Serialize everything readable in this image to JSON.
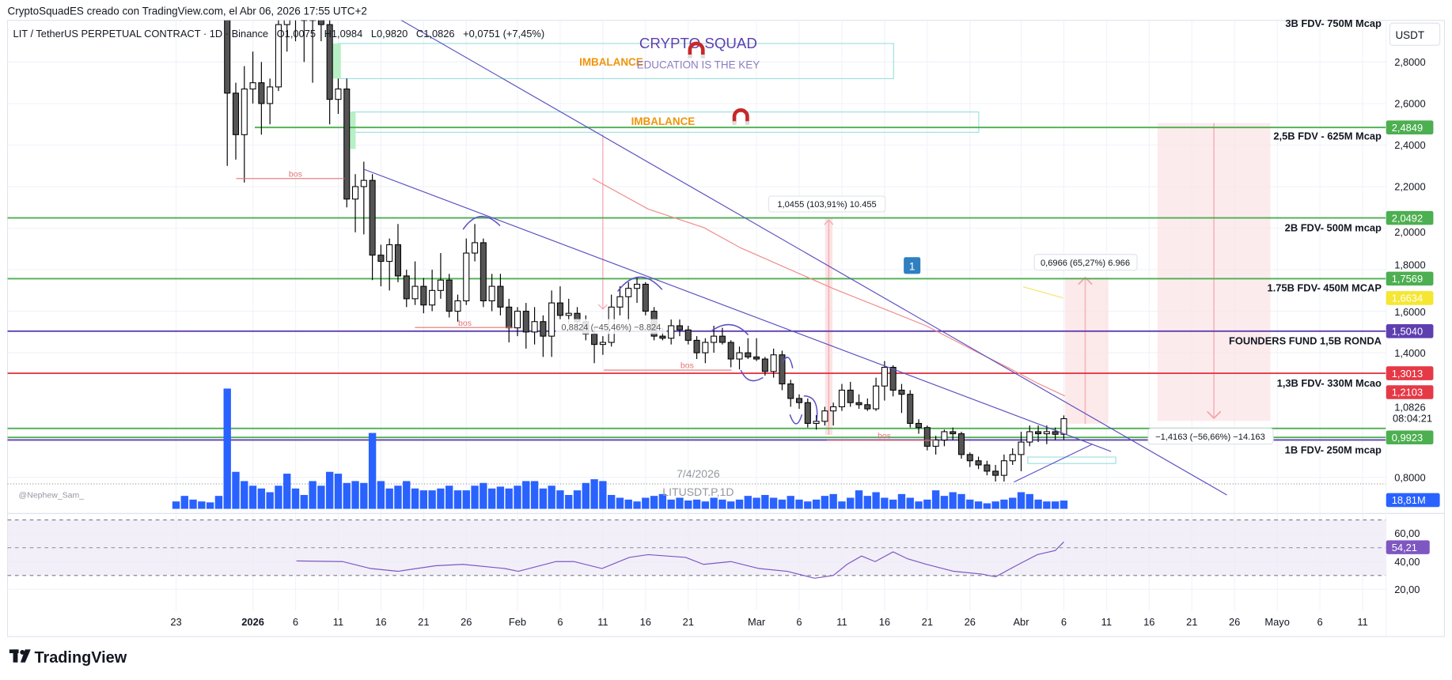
{
  "header": {
    "attribution": "CryptoSquadES creado con TradingView.com, el Abr 06, 2026 17:55 UTC+2",
    "symbol": "LIT / TetherUS PERPETUAL CONTRACT · 1D · Binance",
    "open": "O1,0075",
    "high": "H1,0984",
    "low": "L0,9820",
    "close": "C1,0826",
    "change": "+0,0751 (+7,45%)"
  },
  "price_axis": {
    "currency": "USDT",
    "ticks": [
      {
        "label": "2,8000",
        "price": 2.8
      },
      {
        "label": "2,6000",
        "price": 2.6
      },
      {
        "label": "2,4000",
        "price": 2.4
      },
      {
        "label": "2,2000",
        "price": 2.2
      },
      {
        "label": "2,0000",
        "price": 2.0
      },
      {
        "label": "1,8000",
        "price": 1.8
      },
      {
        "label": "1,6000",
        "price": 1.6
      },
      {
        "label": "1,4000",
        "price": 1.4
      },
      {
        "label": "0,8000",
        "price": 0.8
      }
    ],
    "current_price": "1,0826",
    "countdown": "08:04:21",
    "volume_label": "18,81M",
    "volume_color": "#2962ff"
  },
  "price_labels": [
    {
      "text": "2,4849",
      "price": 2.4849,
      "color": "#4caf50"
    },
    {
      "text": "2,0492",
      "price": 2.0492,
      "color": "#4caf50"
    },
    {
      "text": "1,7569",
      "price": 1.7569,
      "color": "#4caf50"
    },
    {
      "text": "1,6634",
      "price": 1.6634,
      "color": "#f5e632"
    },
    {
      "text": "1,5040",
      "price": 1.504,
      "color": "#5e3fb0"
    },
    {
      "text": "1,3013",
      "price": 1.3013,
      "color": "#e53946"
    },
    {
      "text": "1,2103",
      "price": 1.2103,
      "color": "#e53946"
    },
    {
      "text": "0,9923",
      "price": 0.9923,
      "color": "#4caf50"
    }
  ],
  "level_notes": [
    "3B FDV-  750M Mcap",
    "2,5B FDV - 625M Mcap",
    "2B FDV- 500M mcap",
    "1.75B FDV- 450M MCAP",
    "FOUNDERS FUND 1,5B RONDA",
    "1,3B FDV- 330M Mcao",
    "1B FDV- 250M mcap"
  ],
  "annotations": {
    "imbalance_1": "IMBALANCE",
    "imbalance_2": "IMBALANCE",
    "brand_title": "CRYPTO SQUAD",
    "brand_tagline": "EDUCATION IS THE KEY",
    "bos": [
      "bos",
      "bos",
      "bos",
      "bos"
    ],
    "measure_1": "0,8824 (−45,46%) −8.824",
    "measure_2": "1,0455 (103,91%) 10.455",
    "measure_3": "0,6966 (65,27%) 6.966",
    "measure_4": "−1,4163 (−56,66%) −14.163",
    "badge": "1",
    "watermark_date": "7/4/2026",
    "watermark_symbol": "LITUSDT.P,1D",
    "author_tag": "@Nephew_Sam_"
  },
  "rsi": {
    "ticks": [
      {
        "label": "60,00",
        "value": 60
      },
      {
        "label": "40,00",
        "value": 40
      },
      {
        "label": "20,00",
        "value": 20
      }
    ],
    "current": "54,21",
    "color": "#7e57c2"
  },
  "time_axis": {
    "labels": [
      {
        "text": "23",
        "day": 0
      },
      {
        "text": "2026",
        "day": 9,
        "bold": true
      },
      {
        "text": "6",
        "day": 14
      },
      {
        "text": "11",
        "day": 19
      },
      {
        "text": "16",
        "day": 24
      },
      {
        "text": "21",
        "day": 29
      },
      {
        "text": "26",
        "day": 34
      },
      {
        "text": "Feb",
        "day": 40
      },
      {
        "text": "6",
        "day": 45
      },
      {
        "text": "11",
        "day": 50
      },
      {
        "text": "16",
        "day": 55
      },
      {
        "text": "21",
        "day": 60
      },
      {
        "text": "Mar",
        "day": 68
      },
      {
        "text": "6",
        "day": 73
      },
      {
        "text": "11",
        "day": 78
      },
      {
        "text": "16",
        "day": 83
      },
      {
        "text": "21",
        "day": 88
      },
      {
        "text": "26",
        "day": 93
      },
      {
        "text": "Abr",
        "day": 99
      },
      {
        "text": "6",
        "day": 104
      },
      {
        "text": "11",
        "day": 109
      },
      {
        "text": "16",
        "day": 114
      },
      {
        "text": "21",
        "day": 119
      },
      {
        "text": "26",
        "day": 124
      },
      {
        "text": "Mayo",
        "day": 129
      },
      {
        "text": "6",
        "day": 134
      },
      {
        "text": "11",
        "day": 139
      }
    ]
  },
  "footer": {
    "logo_text": "TradingView"
  },
  "chart_data": {
    "type": "candlestick",
    "title": "LIT / TetherUS PERPETUAL CONTRACT · 1D · Binance",
    "x_unit": "days since Dec 23 2025",
    "ylim": [
      0.72,
      3.0
    ],
    "candles_start_day": 6,
    "ohlc": [
      [
        3.05,
        3.12,
        2.3,
        2.65
      ],
      [
        2.65,
        2.7,
        2.33,
        2.45
      ],
      [
        2.45,
        2.78,
        2.22,
        2.67
      ],
      [
        2.67,
        2.85,
        2.6,
        2.7
      ],
      [
        2.7,
        2.8,
        2.45,
        2.6
      ],
      [
        2.6,
        2.72,
        2.5,
        2.68
      ],
      [
        2.68,
        3.1,
        2.66,
        2.98
      ],
      [
        2.98,
        3.2,
        2.85,
        3.05
      ],
      [
        3.05,
        3.3,
        2.9,
        3.1
      ],
      [
        3.1,
        3.3,
        2.8,
        3.0
      ],
      [
        3.0,
        3.2,
        2.7,
        3.05
      ],
      [
        3.05,
        3.15,
        2.9,
        2.98
      ],
      [
        2.98,
        3.02,
        2.5,
        2.62
      ],
      [
        2.62,
        2.72,
        2.55,
        2.67
      ],
      [
        2.67,
        2.72,
        2.1,
        2.14
      ],
      [
        2.14,
        2.26,
        1.98,
        2.2
      ],
      [
        2.2,
        2.32,
        1.97,
        2.23
      ],
      [
        2.23,
        2.26,
        1.75,
        1.87
      ],
      [
        1.87,
        1.92,
        1.72,
        1.84
      ],
      [
        1.84,
        1.95,
        1.7,
        1.92
      ],
      [
        1.92,
        2.02,
        1.74,
        1.77
      ],
      [
        1.77,
        1.8,
        1.62,
        1.66
      ],
      [
        1.66,
        1.84,
        1.63,
        1.72
      ],
      [
        1.72,
        1.76,
        1.59,
        1.63
      ],
      [
        1.63,
        1.8,
        1.6,
        1.7
      ],
      [
        1.7,
        1.88,
        1.66,
        1.75
      ],
      [
        1.75,
        1.78,
        1.57,
        1.6
      ],
      [
        1.6,
        1.68,
        1.55,
        1.65
      ],
      [
        1.65,
        1.95,
        1.63,
        1.88
      ],
      [
        1.88,
        2.02,
        1.84,
        1.93
      ],
      [
        1.93,
        1.95,
        1.62,
        1.65
      ],
      [
        1.65,
        1.78,
        1.6,
        1.72
      ],
      [
        1.72,
        1.78,
        1.58,
        1.62
      ],
      [
        1.62,
        1.66,
        1.45,
        1.52
      ],
      [
        1.52,
        1.62,
        1.48,
        1.6
      ],
      [
        1.6,
        1.64,
        1.42,
        1.5
      ],
      [
        1.5,
        1.62,
        1.44,
        1.55
      ],
      [
        1.55,
        1.58,
        1.38,
        1.48
      ],
      [
        1.48,
        1.7,
        1.38,
        1.64
      ],
      [
        1.64,
        1.72,
        1.56,
        1.58
      ],
      [
        1.58,
        1.66,
        1.54,
        1.59
      ],
      [
        1.59,
        1.62,
        1.5,
        1.55
      ],
      [
        1.55,
        1.58,
        1.46,
        1.49
      ],
      [
        1.49,
        1.52,
        1.35,
        1.44
      ],
      [
        1.44,
        1.48,
        1.39,
        1.45
      ],
      [
        1.45,
        1.68,
        1.43,
        1.62
      ],
      [
        1.62,
        1.72,
        1.58,
        1.67
      ],
      [
        1.67,
        1.74,
        1.55,
        1.71
      ],
      [
        1.71,
        1.76,
        1.64,
        1.73
      ],
      [
        1.73,
        1.74,
        1.58,
        1.6
      ],
      [
        1.6,
        1.62,
        1.46,
        1.48
      ],
      [
        1.48,
        1.52,
        1.46,
        1.47
      ],
      [
        1.47,
        1.56,
        1.44,
        1.53
      ],
      [
        1.53,
        1.56,
        1.48,
        1.51
      ],
      [
        1.51,
        1.53,
        1.44,
        1.46
      ],
      [
        1.46,
        1.48,
        1.37,
        1.4
      ],
      [
        1.4,
        1.47,
        1.35,
        1.45
      ],
      [
        1.45,
        1.53,
        1.4,
        1.48
      ],
      [
        1.48,
        1.52,
        1.44,
        1.45
      ],
      [
        1.45,
        1.46,
        1.33,
        1.37
      ],
      [
        1.37,
        1.43,
        1.32,
        1.4
      ],
      [
        1.4,
        1.47,
        1.37,
        1.38
      ],
      [
        1.38,
        1.47,
        1.36,
        1.37
      ],
      [
        1.37,
        1.38,
        1.29,
        1.31
      ],
      [
        1.31,
        1.42,
        1.28,
        1.39
      ],
      [
        1.39,
        1.41,
        1.22,
        1.25
      ],
      [
        1.25,
        1.27,
        1.14,
        1.18
      ],
      [
        1.18,
        1.2,
        1.13,
        1.16
      ],
      [
        1.16,
        1.18,
        1.04,
        1.06
      ],
      [
        1.06,
        1.1,
        1.03,
        1.07
      ],
      [
        1.07,
        1.14,
        1.05,
        1.12
      ],
      [
        1.12,
        1.16,
        1.05,
        1.14
      ],
      [
        1.14,
        1.25,
        1.12,
        1.22
      ],
      [
        1.22,
        1.26,
        1.14,
        1.16
      ],
      [
        1.16,
        1.2,
        1.13,
        1.15
      ],
      [
        1.15,
        1.18,
        1.12,
        1.13
      ],
      [
        1.13,
        1.28,
        1.12,
        1.24
      ],
      [
        1.24,
        1.36,
        1.17,
        1.33
      ],
      [
        1.33,
        1.34,
        1.19,
        1.22
      ],
      [
        1.22,
        1.25,
        1.11,
        1.2
      ],
      [
        1.2,
        1.22,
        1.04,
        1.06
      ],
      [
        1.06,
        1.08,
        1.01,
        1.04
      ],
      [
        1.04,
        1.05,
        0.93,
        0.95
      ],
      [
        0.95,
        1.0,
        0.91,
        0.98
      ],
      [
        0.98,
        1.03,
        0.95,
        1.02
      ],
      [
        1.02,
        1.04,
        0.98,
        1.01
      ],
      [
        1.01,
        1.02,
        0.89,
        0.91
      ],
      [
        0.91,
        0.92,
        0.85,
        0.88
      ],
      [
        0.88,
        0.9,
        0.84,
        0.86
      ],
      [
        0.86,
        0.88,
        0.81,
        0.83
      ],
      [
        0.83,
        0.86,
        0.78,
        0.81
      ],
      [
        0.81,
        0.91,
        0.78,
        0.88
      ],
      [
        0.88,
        0.94,
        0.86,
        0.91
      ],
      [
        0.91,
        1.02,
        0.83,
        0.97
      ],
      [
        0.97,
        1.05,
        0.95,
        1.02
      ],
      [
        1.02,
        1.05,
        0.97,
        1.01
      ],
      [
        1.01,
        1.05,
        0.96,
        1.02
      ],
      [
        1.02,
        1.04,
        0.98,
        1.0075
      ],
      [
        1.0075,
        1.0984,
        0.982,
        1.0826
      ]
    ],
    "volume_start_day": 0,
    "volume_millions": [
      16.8,
      29.4,
      21,
      16.8,
      14.7,
      29.4,
      273,
      84,
      63,
      52.5,
      46.2,
      37.8,
      52.5,
      79.8,
      46.2,
      31.5,
      63,
      52.5,
      84,
      79.8,
      58.8,
      63,
      58.8,
      172.2,
      63,
      46.2,
      52.5,
      63,
      46.2,
      42,
      42,
      46.2,
      52.5,
      42,
      42,
      52.5,
      58.8,
      46.2,
      50.4,
      46.2,
      52.5,
      63,
      63,
      46.2,
      52.5,
      42,
      31.5,
      42,
      58.8,
      67.2,
      63,
      31.5,
      25.2,
      21,
      16.8,
      25.2,
      29.4,
      33.6,
      21,
      25.2,
      18.9,
      21,
      16.8,
      25.2,
      21,
      16.8,
      21,
      29.4,
      25.2,
      31.5,
      25.2,
      21,
      29.4,
      21,
      16.8,
      21,
      29.4,
      33.6,
      16.8,
      25.2,
      42,
      29.4,
      37.8,
      25.2,
      21,
      33.6,
      25.2,
      16.8,
      21,
      42,
      29.4,
      37.8,
      33.6,
      21,
      16.8,
      12.6,
      16.8,
      21,
      25.2,
      37.8,
      33.6,
      21,
      16.8,
      16.8,
      18.81
    ],
    "rsi_points": [
      [
        14.1,
        40.5
      ],
      [
        19.5,
        40
      ],
      [
        22.8,
        35
      ],
      [
        26,
        33
      ],
      [
        30.4,
        37
      ],
      [
        33.6,
        38
      ],
      [
        38.5,
        35
      ],
      [
        40.1,
        33
      ],
      [
        44.5,
        40
      ],
      [
        46.6,
        40
      ],
      [
        49.9,
        35
      ],
      [
        53.1,
        43
      ],
      [
        55.3,
        45
      ],
      [
        59.7,
        43
      ],
      [
        61.8,
        38
      ],
      [
        65,
        40
      ],
      [
        68.3,
        35
      ],
      [
        71.6,
        33
      ],
      [
        74.8,
        28
      ],
      [
        77,
        30
      ],
      [
        78.6,
        38
      ],
      [
        80.3,
        44
      ],
      [
        81.9,
        40
      ],
      [
        84,
        47
      ],
      [
        85.7,
        42
      ],
      [
        87.9,
        38
      ],
      [
        91.1,
        33
      ],
      [
        94.4,
        31
      ],
      [
        96,
        29
      ],
      [
        98.7,
        38
      ],
      [
        100.9,
        45
      ],
      [
        103,
        48
      ],
      [
        104,
        54.21
      ]
    ],
    "rsi_bands": [
      70,
      50,
      30
    ],
    "horizontal_levels": [
      2.4849,
      2.0492,
      1.7569,
      1.504,
      1.3013,
      1.036,
      0.9923,
      0.98
    ]
  }
}
